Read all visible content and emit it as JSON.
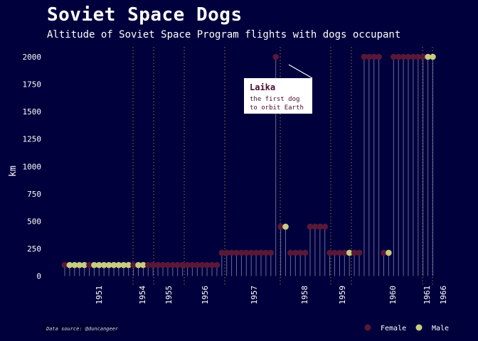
{
  "title": "Soviet Space Dogs",
  "subtitle": "Altitude of Soviet Space Program flights with dogs occupant",
  "caption": "Data source: @duncangeer",
  "colors": {
    "background": "#00003c",
    "female": "#5a1838",
    "male": "#c8cc80",
    "stem": "#6a6a98",
    "vline": "#8a7a2e"
  },
  "chart_data": {
    "type": "scatter",
    "ylabel": "km",
    "xlabel": "",
    "ylim": [
      0,
      2000
    ],
    "yticks": [
      0,
      250,
      500,
      750,
      1000,
      1250,
      1500,
      1750,
      2000
    ],
    "xticks": [
      "1951",
      "1954",
      "1955",
      "1956",
      "1957",
      "1958",
      "1959",
      "1960",
      "1961",
      "1966"
    ],
    "legend": {
      "position": "bottom-right",
      "entries": [
        "Female",
        "Male"
      ]
    },
    "annotation": {
      "title": "Laika",
      "text": [
        "the first dog",
        "to orbit Earth"
      ]
    },
    "points": [
      {
        "i": 0,
        "y": 100,
        "s": "F"
      },
      {
        "i": 1,
        "y": 100,
        "s": "M"
      },
      {
        "i": 2,
        "y": 100,
        "s": "M"
      },
      {
        "i": 3,
        "y": 100,
        "s": "M"
      },
      {
        "i": 4,
        "y": 100,
        "s": "M"
      },
      {
        "i": 5,
        "y": 100,
        "s": "F"
      },
      {
        "i": 6,
        "y": 100,
        "s": "M"
      },
      {
        "i": 7,
        "y": 100,
        "s": "M"
      },
      {
        "i": 8,
        "y": 100,
        "s": "M"
      },
      {
        "i": 9,
        "y": 100,
        "s": "M"
      },
      {
        "i": 10,
        "y": 100,
        "s": "M"
      },
      {
        "i": 11,
        "y": 100,
        "s": "M"
      },
      {
        "i": 12,
        "y": 100,
        "s": "M"
      },
      {
        "i": 13,
        "y": 100,
        "s": "M"
      },
      {
        "i": 14,
        "y": 100,
        "s": "F"
      },
      {
        "i": 15,
        "y": 100,
        "s": "M"
      },
      {
        "i": 16,
        "y": 100,
        "s": "M"
      },
      {
        "i": 17,
        "y": 100,
        "s": "F"
      },
      {
        "i": 18,
        "y": 100,
        "s": "F"
      },
      {
        "i": 19,
        "y": 100,
        "s": "F"
      },
      {
        "i": 20,
        "y": 100,
        "s": "F"
      },
      {
        "i": 21,
        "y": 100,
        "s": "F"
      },
      {
        "i": 22,
        "y": 100,
        "s": "F"
      },
      {
        "i": 23,
        "y": 100,
        "s": "F"
      },
      {
        "i": 24,
        "y": 100,
        "s": "F"
      },
      {
        "i": 25,
        "y": 100,
        "s": "F"
      },
      {
        "i": 26,
        "y": 100,
        "s": "F"
      },
      {
        "i": 27,
        "y": 100,
        "s": "F"
      },
      {
        "i": 28,
        "y": 100,
        "s": "F"
      },
      {
        "i": 29,
        "y": 100,
        "s": "F"
      },
      {
        "i": 30,
        "y": 100,
        "s": "F"
      },
      {
        "i": 31,
        "y": 100,
        "s": "F"
      },
      {
        "i": 32,
        "y": 212,
        "s": "F"
      },
      {
        "i": 33,
        "y": 212,
        "s": "F"
      },
      {
        "i": 34,
        "y": 212,
        "s": "F"
      },
      {
        "i": 35,
        "y": 212,
        "s": "F"
      },
      {
        "i": 36,
        "y": 212,
        "s": "F"
      },
      {
        "i": 37,
        "y": 212,
        "s": "F"
      },
      {
        "i": 38,
        "y": 212,
        "s": "F"
      },
      {
        "i": 39,
        "y": 212,
        "s": "F"
      },
      {
        "i": 40,
        "y": 212,
        "s": "F"
      },
      {
        "i": 41,
        "y": 212,
        "s": "F"
      },
      {
        "i": 42,
        "y": 212,
        "s": "F"
      },
      {
        "i": 43,
        "y": 2000,
        "s": "F"
      },
      {
        "i": 44,
        "y": 450,
        "s": "F"
      },
      {
        "i": 45,
        "y": 450,
        "s": "M"
      },
      {
        "i": 46,
        "y": 212,
        "s": "F"
      },
      {
        "i": 47,
        "y": 212,
        "s": "F"
      },
      {
        "i": 48,
        "y": 212,
        "s": "F"
      },
      {
        "i": 49,
        "y": 212,
        "s": "F"
      },
      {
        "i": 50,
        "y": 450,
        "s": "F"
      },
      {
        "i": 51,
        "y": 450,
        "s": "F"
      },
      {
        "i": 52,
        "y": 450,
        "s": "F"
      },
      {
        "i": 53,
        "y": 450,
        "s": "F"
      },
      {
        "i": 54,
        "y": 212,
        "s": "F"
      },
      {
        "i": 55,
        "y": 212,
        "s": "F"
      },
      {
        "i": 56,
        "y": 212,
        "s": "F"
      },
      {
        "i": 57,
        "y": 212,
        "s": "F"
      },
      {
        "i": 58,
        "y": 212,
        "s": "M"
      },
      {
        "i": 59,
        "y": 212,
        "s": "F"
      },
      {
        "i": 60,
        "y": 212,
        "s": "F"
      },
      {
        "i": 61,
        "y": 2000,
        "s": "F"
      },
      {
        "i": 62,
        "y": 2000,
        "s": "F"
      },
      {
        "i": 63,
        "y": 2000,
        "s": "F"
      },
      {
        "i": 64,
        "y": 2000,
        "s": "F"
      },
      {
        "i": 65,
        "y": 212,
        "s": "F"
      },
      {
        "i": 66,
        "y": 212,
        "s": "M"
      },
      {
        "i": 67,
        "y": 2000,
        "s": "F"
      },
      {
        "i": 68,
        "y": 2000,
        "s": "F"
      },
      {
        "i": 69,
        "y": 2000,
        "s": "F"
      },
      {
        "i": 70,
        "y": 2000,
        "s": "F"
      },
      {
        "i": 71,
        "y": 2000,
        "s": "F"
      },
      {
        "i": 72,
        "y": 2000,
        "s": "F"
      },
      {
        "i": 73,
        "y": 2000,
        "s": "F"
      },
      {
        "i": 74,
        "y": 2000,
        "s": "M"
      },
      {
        "i": 75,
        "y": 2000,
        "s": "M"
      }
    ]
  }
}
